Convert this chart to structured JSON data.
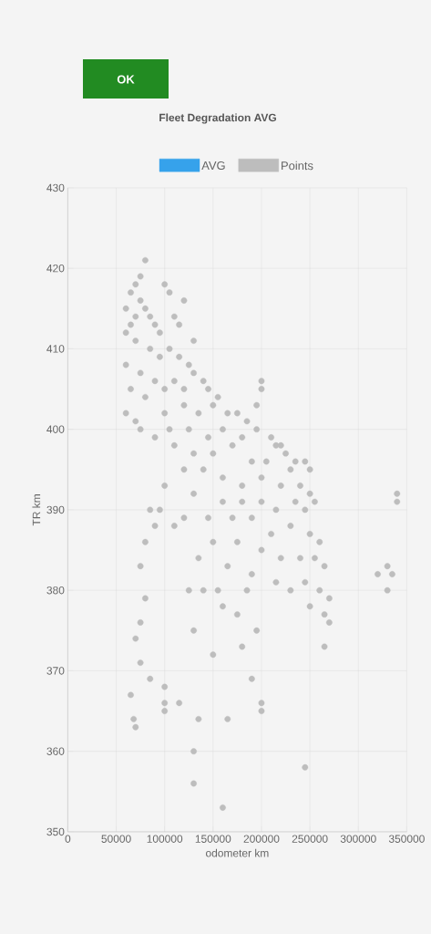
{
  "chart_data": {
    "type": "scatter",
    "title": "Fleet Degradation AVG",
    "annotations": [
      "OK"
    ],
    "xlabel": "odometer km",
    "ylabel": "TR km",
    "xlim": [
      0,
      350000
    ],
    "xticks": [
      0,
      50000,
      100000,
      150000,
      200000,
      250000,
      300000,
      350000
    ],
    "ylim": [
      350,
      430
    ],
    "yticks": [
      350,
      360,
      370,
      380,
      390,
      400,
      410,
      420,
      430
    ],
    "grid": true,
    "legend": "top",
    "marker": "circle",
    "series": [
      {
        "name": "AVG",
        "color": "#36a2eb"
      },
      {
        "name": "Points",
        "color": "#bdbdbd",
        "x": [
          65000,
          70000,
          75000,
          80000,
          60000,
          65000,
          70000,
          75000,
          80000,
          85000,
          90000,
          95000,
          100000,
          105000,
          110000,
          115000,
          120000,
          130000,
          60000,
          70000,
          85000,
          95000,
          105000,
          115000,
          125000,
          60000,
          75000,
          90000,
          100000,
          110000,
          120000,
          130000,
          140000,
          145000,
          155000,
          200000,
          200000,
          195000,
          150000,
          165000,
          175000,
          185000,
          135000,
          120000,
          100000,
          80000,
          65000,
          60000,
          105000,
          125000,
          145000,
          160000,
          180000,
          195000,
          210000,
          215000,
          220000,
          225000,
          235000,
          245000,
          250000,
          90000,
          110000,
          130000,
          150000,
          170000,
          190000,
          205000,
          230000,
          120000,
          140000,
          160000,
          180000,
          200000,
          220000,
          240000,
          250000,
          100000,
          130000,
          160000,
          180000,
          200000,
          215000,
          235000,
          245000,
          255000,
          95000,
          120000,
          145000,
          170000,
          190000,
          210000,
          230000,
          250000,
          260000,
          110000,
          150000,
          175000,
          200000,
          220000,
          240000,
          255000,
          265000,
          135000,
          165000,
          190000,
          215000,
          245000,
          260000,
          270000,
          155000,
          185000,
          230000,
          250000,
          265000,
          270000,
          80000,
          75000,
          80000,
          75000,
          70000,
          75000,
          85000,
          65000,
          68000,
          70000,
          100000,
          100000,
          100000,
          125000,
          160000,
          175000,
          195000,
          130000,
          150000,
          180000,
          190000,
          200000,
          200000,
          265000,
          115000,
          135000,
          165000,
          245000,
          130000,
          130000,
          160000,
          330000,
          330000,
          335000,
          340000,
          340000,
          320000,
          85000,
          90000,
          140000,
          75000,
          70000
        ],
        "values": [
          417,
          418,
          419,
          421,
          415,
          413,
          414,
          416,
          415,
          414,
          413,
          412,
          418,
          417,
          414,
          413,
          416,
          411,
          412,
          411,
          410,
          409,
          410,
          409,
          408,
          408,
          407,
          406,
          405,
          406,
          405,
          407,
          406,
          405,
          404,
          406,
          405,
          403,
          403,
          402,
          402,
          401,
          402,
          403,
          402,
          404,
          405,
          402,
          400,
          400,
          399,
          400,
          399,
          400,
          399,
          398,
          398,
          397,
          396,
          396,
          395,
          399,
          398,
          397,
          397,
          398,
          396,
          396,
          395,
          395,
          395,
          394,
          393,
          394,
          393,
          393,
          392,
          393,
          392,
          391,
          391,
          391,
          390,
          391,
          390,
          391,
          390,
          389,
          389,
          389,
          389,
          387,
          388,
          387,
          386,
          388,
          386,
          386,
          385,
          384,
          384,
          384,
          383,
          384,
          383,
          382,
          381,
          381,
          380,
          379,
          380,
          380,
          380,
          378,
          377,
          376,
          386,
          383,
          379,
          376,
          374,
          371,
          369,
          367,
          364,
          363,
          368,
          366,
          365,
          380,
          378,
          377,
          375,
          375,
          372,
          373,
          369,
          366,
          365,
          373,
          366,
          364,
          364,
          358,
          360,
          356,
          353,
          383,
          380,
          382,
          392,
          391,
          382,
          390,
          388,
          380,
          400,
          401
        ]
      }
    ]
  }
}
